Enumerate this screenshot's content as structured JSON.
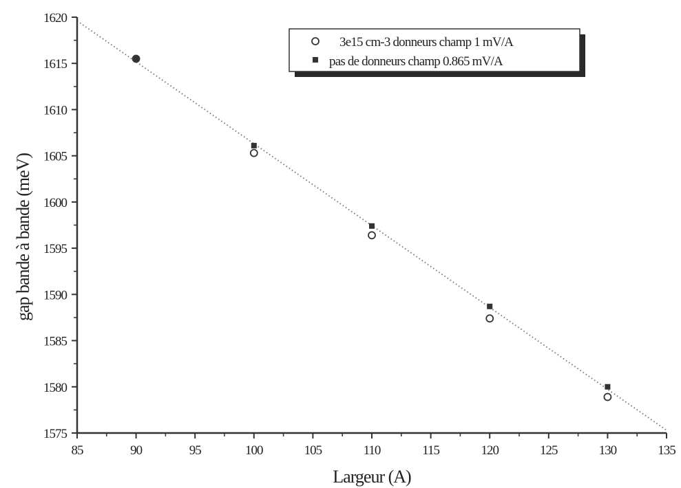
{
  "chart_data": {
    "type": "scatter",
    "xlabel": "Largeur (A)",
    "ylabel": "gap bande à bande (meV)",
    "xlim": [
      85,
      135
    ],
    "ylim": [
      1575,
      1620
    ],
    "xticks": [
      "85",
      "90",
      "95",
      "100",
      "105",
      "110",
      "115",
      "120",
      "125",
      "130",
      "135"
    ],
    "yticks": [
      "1575",
      "1580",
      "1585",
      "1590",
      "1595",
      "1600",
      "1605",
      "1610",
      "1615",
      "1620"
    ],
    "grid": false,
    "legend_position": "top-right",
    "series": [
      {
        "name": "3e15 cm-3 donneurs champ 1 mV/A",
        "marker": "open-circle",
        "x": [
          90,
          100,
          110,
          120,
          130
        ],
        "y": [
          1615.5,
          1605.3,
          1596.4,
          1587.4,
          1578.9
        ]
      },
      {
        "name": "pas de donneurs champ 0.865 mV/A",
        "marker": "filled-square",
        "x": [
          90,
          100,
          110,
          120,
          130
        ],
        "y": [
          1615.5,
          1606.1,
          1597.4,
          1588.7,
          1580.0
        ]
      }
    ],
    "fit_line": {
      "style": "dotted",
      "x": [
        85,
        135
      ],
      "y": [
        1619.6,
        1575.3
      ]
    }
  }
}
